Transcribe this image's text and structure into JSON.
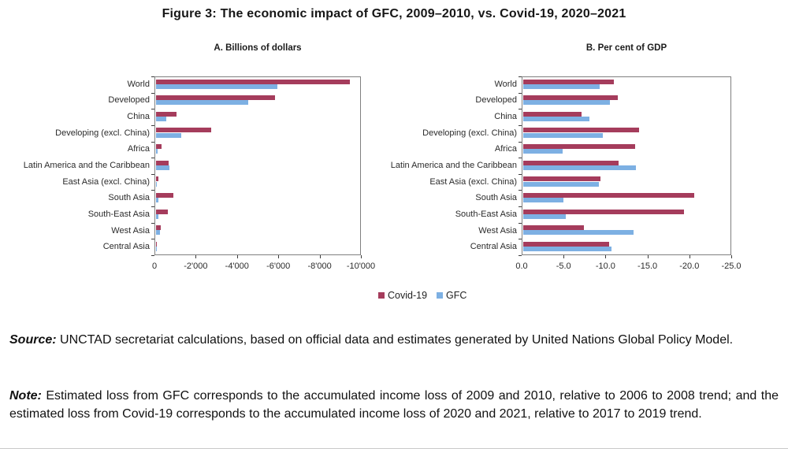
{
  "figure_title": "Figure 3: The economic impact of GFC, 2009–2010, vs. Covid-19, 2020–2021",
  "legend": {
    "covid_label": "Covid-19",
    "gfc_label": "GFC"
  },
  "colors": {
    "covid": "#A53C5C",
    "gfc": "#7DB0E3",
    "plot_border": "#808080",
    "text": "#1a1a1a"
  },
  "source": {
    "label": "Source:",
    "text": "UNCTAD secretariat calculations, based on official data and estimates generated by United Nations Global Policy Model."
  },
  "note": {
    "label": "Note:",
    "text": "Estimated loss from GFC corresponds to the accumulated income loss of 2009 and 2010, relative to 2006 to 2008 trend; and the estimated loss from Covid-19 corresponds to the accumulated income loss of 2020 and 2021, relative to 2017 to 2019 trend."
  },
  "chart_data": [
    {
      "type": "bar",
      "orientation": "horizontal",
      "title": "A. Billions of dollars",
      "categories": [
        "World",
        "Developed",
        "China",
        "Developing (excl. China)",
        "Africa",
        "Latin America and the Caribbean",
        "East Asia (excl. China)",
        "South Asia",
        "South-East Asia",
        "West Asia",
        "Central Asia"
      ],
      "series": [
        {
          "name": "Covid-19",
          "color": "#A53C5C",
          "values": [
            -9400,
            -5800,
            -1000,
            -2700,
            -300,
            -620,
            -120,
            -850,
            -600,
            -230,
            -40
          ]
        },
        {
          "name": "GFC",
          "color": "#7DB0E3",
          "values": [
            -5900,
            -4500,
            -500,
            -1250,
            -100,
            -650,
            -60,
            -120,
            -130,
            -220,
            -30
          ]
        }
      ],
      "xlim": [
        0,
        -10000
      ],
      "x_tick_labels": [
        "0",
        "-2'000",
        "-4'000",
        "-6'000",
        "-8'000",
        "-10'000"
      ],
      "grid": false,
      "legend_position": "bottom-center-shared"
    },
    {
      "type": "bar",
      "orientation": "horizontal",
      "title": "B. Per cent of GDP",
      "categories": [
        "World",
        "Developed",
        "China",
        "Developing (excl. China)",
        "Africa",
        "Latin America and the Caribbean",
        "East Asia (excl. China)",
        "South Asia",
        "South-East Asia",
        "West Asia",
        "Central Asia"
      ],
      "series": [
        {
          "name": "Covid-19",
          "color": "#A53C5C",
          "values": [
            -10.9,
            -11.3,
            -7.0,
            -13.9,
            -13.4,
            -11.4,
            -9.3,
            -20.4,
            -19.2,
            -7.3,
            -10.3
          ]
        },
        {
          "name": "GFC",
          "color": "#7DB0E3",
          "values": [
            -9.2,
            -10.4,
            -7.9,
            -9.5,
            -4.7,
            -13.5,
            -9.1,
            -4.8,
            -5.1,
            -13.2,
            -10.6
          ]
        }
      ],
      "xlim": [
        0,
        -25
      ],
      "x_tick_labels": [
        "0.0",
        "-5.0",
        "-10.0",
        "-15.0",
        "-20.0",
        "-25.0"
      ],
      "grid": false,
      "legend_position": "bottom-center-shared"
    }
  ]
}
